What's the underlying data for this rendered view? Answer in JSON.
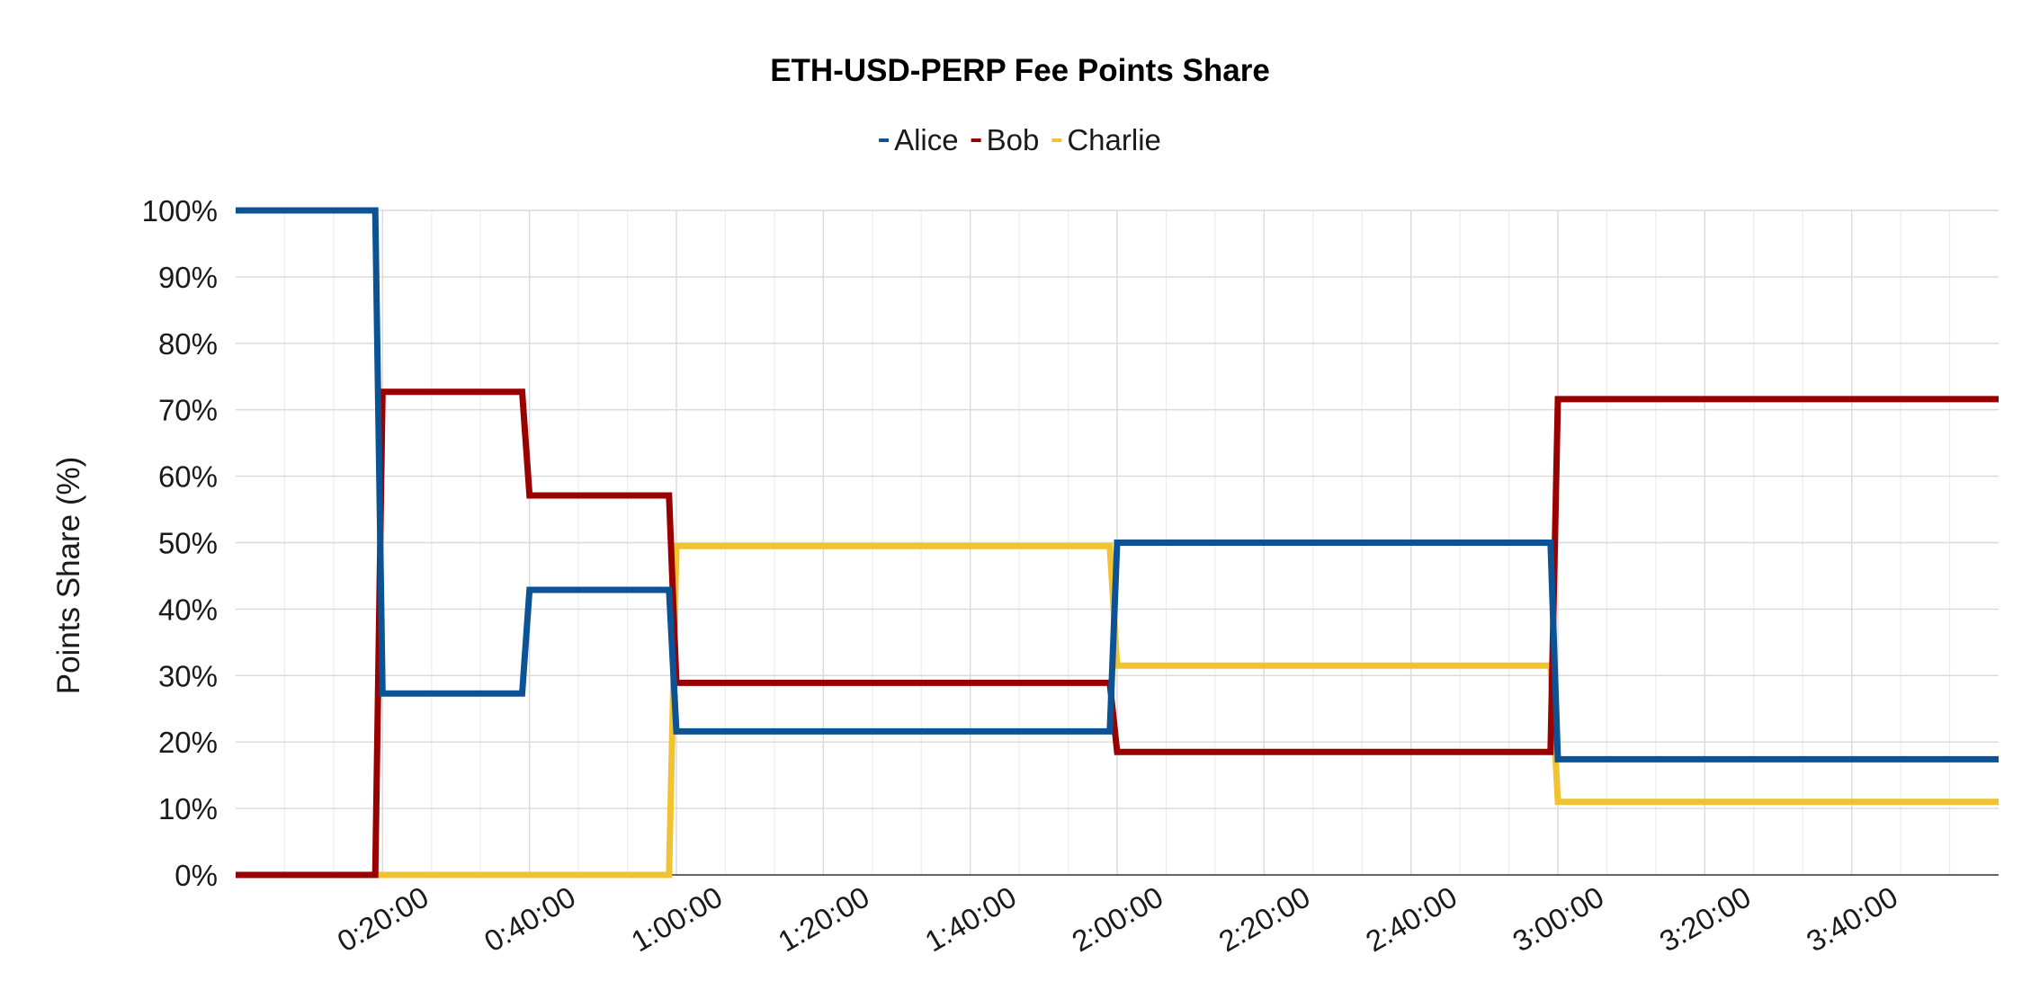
{
  "chart_data": {
    "type": "line",
    "title": "ETH-USD-PERP Fee Points Share",
    "ylabel": "Points Share (%)",
    "xlabel": "",
    "x_unit": "minutes",
    "xlim": [
      0,
      240
    ],
    "ylim": [
      0,
      100
    ],
    "y_ticks": [
      "0%",
      "10%",
      "20%",
      "30%",
      "40%",
      "50%",
      "60%",
      "70%",
      "80%",
      "90%",
      "100%"
    ],
    "x_ticks": [
      {
        "t": 20,
        "label": "0:20:00"
      },
      {
        "t": 40,
        "label": "0:40:00"
      },
      {
        "t": 60,
        "label": "1:00:00"
      },
      {
        "t": 80,
        "label": "1:20:00"
      },
      {
        "t": 100,
        "label": "1:40:00"
      },
      {
        "t": 120,
        "label": "2:00:00"
      },
      {
        "t": 140,
        "label": "2:20:00"
      },
      {
        "t": 160,
        "label": "2:40:00"
      },
      {
        "t": 180,
        "label": "3:00:00"
      },
      {
        "t": 200,
        "label": "3:20:00"
      },
      {
        "t": 220,
        "label": "3:40:00"
      }
    ],
    "grid": true,
    "legend_position": "top",
    "x": [
      0,
      19,
      20,
      39,
      40,
      59,
      60,
      119,
      120,
      179,
      180,
      240
    ],
    "series": [
      {
        "name": "Alice",
        "color": "#0b5394",
        "values": [
          100,
          100,
          27.3,
          27.3,
          42.9,
          42.9,
          21.6,
          21.6,
          50.0,
          50.0,
          17.4,
          17.4
        ]
      },
      {
        "name": "Bob",
        "color": "#990000",
        "values": [
          0,
          0,
          72.7,
          72.7,
          57.1,
          57.1,
          28.9,
          28.9,
          18.5,
          18.5,
          71.6,
          71.6
        ]
      },
      {
        "name": "Charlie",
        "color": "#f1c232",
        "values": [
          0,
          0,
          0,
          0,
          0,
          0,
          49.5,
          49.5,
          31.5,
          31.5,
          11.0,
          11.0
        ]
      }
    ]
  }
}
